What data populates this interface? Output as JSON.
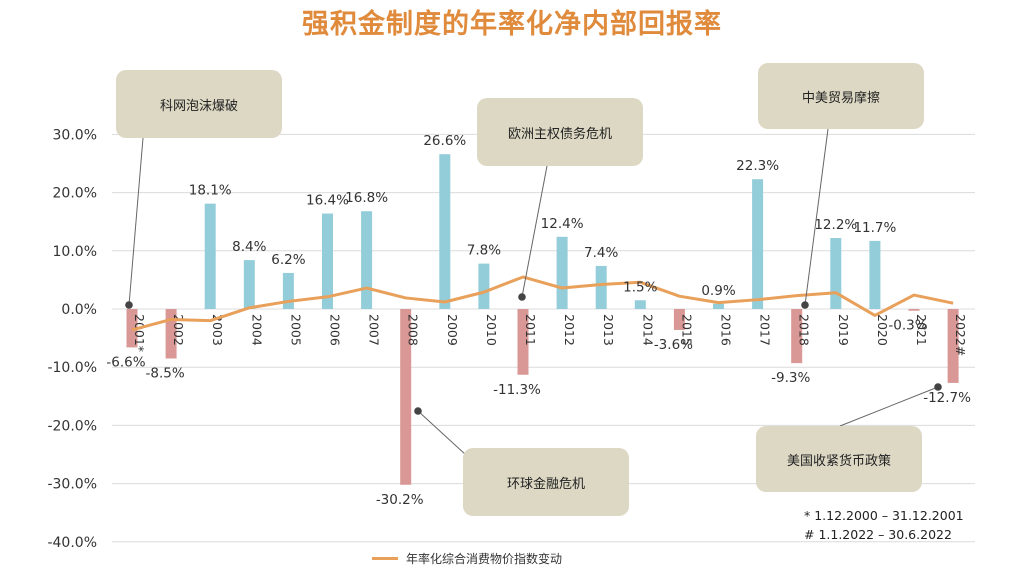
{
  "title": "强积金制度的年率化净内部回报率",
  "colors": {
    "positive": "#93cdd9",
    "negative": "#d99896",
    "cpi": "#e8a05a",
    "box": "#ddd8c4",
    "title": "#e08a3c"
  },
  "chart_data": {
    "type": "bar",
    "categories": [
      "2001*",
      "2002",
      "2003",
      "2004",
      "2005",
      "2006",
      "2007",
      "2008",
      "2009",
      "2010",
      "2011",
      "2012",
      "2013",
      "2014",
      "2015",
      "2016",
      "2017",
      "2018",
      "2019",
      "2020",
      "2021",
      "2022#"
    ],
    "series": [
      {
        "name": "",
        "kind": "bar",
        "values": [
          -6.6,
          -8.5,
          18.1,
          8.4,
          6.2,
          16.4,
          16.8,
          -30.2,
          26.6,
          7.8,
          -11.3,
          12.4,
          7.4,
          1.5,
          -3.6,
          0.9,
          22.3,
          -9.3,
          12.2,
          11.7,
          -0.3,
          -12.7
        ],
        "labels": [
          "-6.6%",
          "-8.5%",
          "18.1%",
          "8.4%",
          "6.2%",
          "16.4%",
          "16.8%",
          "-30.2%",
          "26.6%",
          "7.8%",
          "-11.3%",
          "12.4%",
          "7.4%",
          "1.5%",
          "-3.6%",
          "0.9%",
          "22.3%",
          "-9.3%",
          "12.2%",
          "11.7%",
          "-0.3%",
          "-12.7%"
        ]
      },
      {
        "name": "年率化综合消费物价指数变动",
        "kind": "line",
        "values": [
          -3.6,
          -1.8,
          -2.0,
          0.2,
          1.3,
          2.1,
          3.6,
          1.9,
          1.2,
          2.9,
          5.5,
          3.6,
          4.2,
          4.6,
          2.2,
          1.1,
          1.6,
          2.3,
          2.8,
          -1.1,
          2.4,
          1.0
        ]
      }
    ],
    "y_ticks": [
      "30.0%",
      "20.0%",
      "10.0%",
      "0.0%",
      "-10.0%",
      "-20.0%",
      "-30.0%",
      "-40.0%"
    ],
    "ylim": [
      -40,
      30
    ],
    "legend_position": "bottom",
    "annotations": [
      {
        "text": "科网泡沫爆破",
        "year_index": 0
      },
      {
        "text": "欧洲主权债务危机",
        "year_index": 10
      },
      {
        "text": "中美贸易摩擦",
        "year_index": 17
      },
      {
        "text": "环球金融危机",
        "year_index": 7
      },
      {
        "text": "美国收紧货币政策",
        "year_index": 21
      }
    ]
  },
  "footnotes": [
    "* 1.12.2000 – 31.12.2001",
    "# 1.1.2022 – 30.6.2022"
  ]
}
